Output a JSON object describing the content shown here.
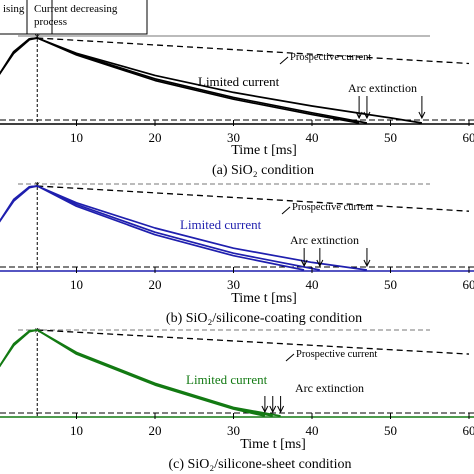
{
  "header_labels": {
    "rising": "ising",
    "decreasing_line1": "Current decreasing",
    "decreasing_line2": "process"
  },
  "colors": {
    "panel_a": "#000000",
    "panel_b": "#1f1fae",
    "panel_c": "#137a13",
    "axis": "#000000"
  },
  "chart_data": [
    {
      "type": "line",
      "caption": "(a) SiO₂ condition",
      "xlabel": "Time t [ms]",
      "xlim": [
        0,
        60
      ],
      "x_ticks": [
        "10",
        "20",
        "30",
        "40",
        "50",
        "60"
      ],
      "annotations": {
        "prospective": "Prospective current",
        "limited": "Limited current",
        "arc": "Arc extinction"
      },
      "arc_extinction_times": [
        46,
        47,
        54
      ],
      "prospective": {
        "peak_t": 5,
        "x": [
          5,
          60
        ],
        "y": [
          1.0,
          0.7
        ]
      },
      "series": [
        {
          "x": [
            0,
            2,
            4,
            5,
            10,
            20,
            30,
            40,
            46
          ],
          "y": [
            0.55,
            0.82,
            0.98,
            1.0,
            0.8,
            0.5,
            0.28,
            0.1,
            0.0
          ]
        },
        {
          "x": [
            0,
            2,
            4,
            5,
            10,
            20,
            30,
            40,
            47
          ],
          "y": [
            0.55,
            0.83,
            0.99,
            1.0,
            0.81,
            0.52,
            0.3,
            0.12,
            0.0
          ]
        },
        {
          "x": [
            0,
            2,
            4,
            5,
            10,
            20,
            30,
            40,
            50,
            54
          ],
          "y": [
            0.55,
            0.84,
            0.99,
            1.0,
            0.82,
            0.56,
            0.36,
            0.2,
            0.06,
            0.0
          ]
        }
      ]
    },
    {
      "type": "line",
      "caption": "(b) SiO₂/silicone-coating condition",
      "xlabel": "Time t [ms]",
      "xlim": [
        0,
        60
      ],
      "x_ticks": [
        "10",
        "20",
        "30",
        "40",
        "50",
        "60"
      ],
      "annotations": {
        "prospective": "Prospective current",
        "limited": "Limited current",
        "arc": "Arc extinction"
      },
      "arc_extinction_times": [
        39,
        41,
        47
      ],
      "prospective": {
        "peak_t": 5,
        "x": [
          5,
          60
        ],
        "y": [
          1.0,
          0.7
        ]
      },
      "series": [
        {
          "x": [
            0,
            2,
            4,
            5,
            10,
            20,
            30,
            39
          ],
          "y": [
            0.55,
            0.82,
            0.98,
            1.0,
            0.76,
            0.42,
            0.17,
            0.0
          ]
        },
        {
          "x": [
            0,
            2,
            4,
            5,
            10,
            20,
            30,
            41
          ],
          "y": [
            0.55,
            0.83,
            0.99,
            1.0,
            0.78,
            0.45,
            0.2,
            0.0
          ]
        },
        {
          "x": [
            0,
            2,
            4,
            5,
            10,
            20,
            30,
            40,
            47
          ],
          "y": [
            0.55,
            0.84,
            0.99,
            1.0,
            0.8,
            0.5,
            0.26,
            0.09,
            0.0
          ]
        }
      ]
    },
    {
      "type": "line",
      "caption": "(c) SiO₂/silicone-sheet condition",
      "xlabel": "Time t [ms]",
      "xlim": [
        0,
        60
      ],
      "x_ticks": [
        "10",
        "20",
        "30",
        "40",
        "50",
        "60"
      ],
      "annotations": {
        "prospective": "Prospective current",
        "limited": "Limited current",
        "arc": "Arc extinction"
      },
      "arc_extinction_times": [
        34,
        35,
        36
      ],
      "prospective": {
        "peak_t": 5,
        "x": [
          5,
          60
        ],
        "y": [
          1.0,
          0.72
        ]
      },
      "series": [
        {
          "x": [
            0,
            2,
            4,
            5,
            10,
            20,
            30,
            34
          ],
          "y": [
            0.55,
            0.82,
            0.98,
            1.0,
            0.72,
            0.36,
            0.08,
            0.0
          ]
        },
        {
          "x": [
            0,
            2,
            4,
            5,
            10,
            20,
            30,
            35
          ],
          "y": [
            0.55,
            0.83,
            0.99,
            1.0,
            0.73,
            0.37,
            0.09,
            0.0
          ]
        },
        {
          "x": [
            0,
            2,
            4,
            5,
            10,
            20,
            30,
            36
          ],
          "y": [
            0.55,
            0.84,
            0.99,
            1.0,
            0.74,
            0.38,
            0.1,
            0.0
          ]
        }
      ]
    }
  ]
}
